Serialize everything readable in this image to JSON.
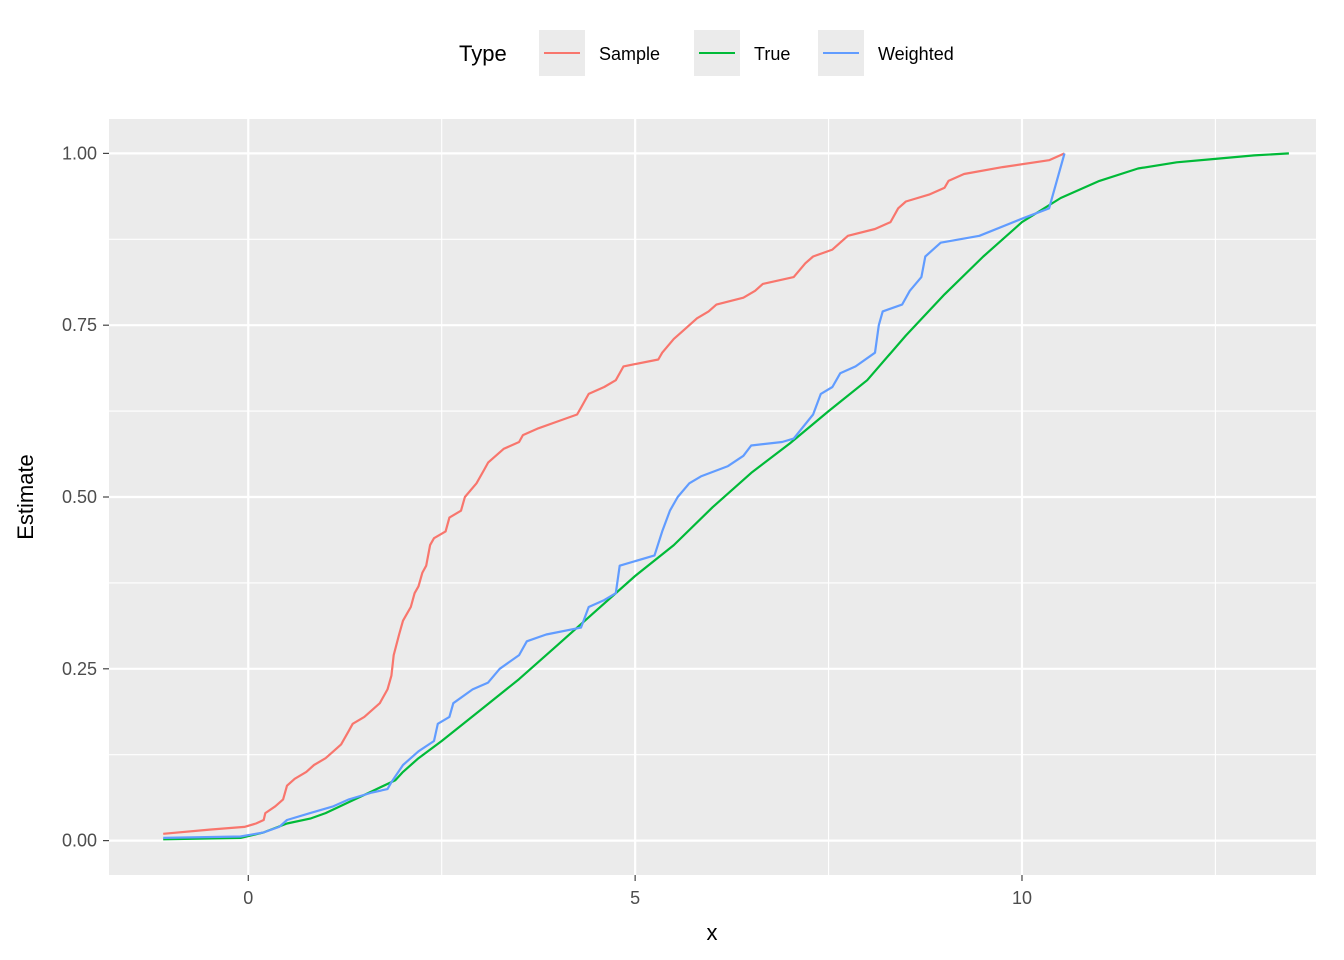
{
  "chart_data": {
    "type": "line",
    "title": "",
    "xlabel": "x",
    "ylabel": "Estimate",
    "xlim": [
      -1.8,
      13.8
    ],
    "ylim": [
      -0.05,
      1.05
    ],
    "x_ticks": [
      0,
      5,
      10
    ],
    "x_tick_labels": [
      "0",
      "5",
      "10"
    ],
    "y_ticks": [
      0,
      0.25,
      0.5,
      0.75,
      1.0
    ],
    "y_tick_labels": [
      "0.00",
      "0.25",
      "0.50",
      "0.75",
      "1.00"
    ],
    "grid": true,
    "legend": {
      "title": "Type",
      "position": "top",
      "entries": [
        "Sample",
        "True",
        "Weighted"
      ]
    },
    "series": [
      {
        "name": "Sample",
        "color": "#F8766D",
        "points": [
          [
            -1.1,
            0.01
          ],
          [
            -0.5,
            0.016
          ],
          [
            -0.05,
            0.02
          ],
          [
            0.1,
            0.025
          ],
          [
            0.2,
            0.03
          ],
          [
            0.22,
            0.04
          ],
          [
            0.35,
            0.05
          ],
          [
            0.45,
            0.06
          ],
          [
            0.5,
            0.08
          ],
          [
            0.6,
            0.09
          ],
          [
            0.75,
            0.1
          ],
          [
            0.85,
            0.11
          ],
          [
            1.0,
            0.12
          ],
          [
            1.1,
            0.13
          ],
          [
            1.2,
            0.14
          ],
          [
            1.3,
            0.16
          ],
          [
            1.35,
            0.17
          ],
          [
            1.5,
            0.18
          ],
          [
            1.7,
            0.2
          ],
          [
            1.8,
            0.22
          ],
          [
            1.85,
            0.24
          ],
          [
            1.88,
            0.27
          ],
          [
            1.95,
            0.3
          ],
          [
            2.0,
            0.32
          ],
          [
            2.05,
            0.33
          ],
          [
            2.1,
            0.34
          ],
          [
            2.15,
            0.36
          ],
          [
            2.2,
            0.37
          ],
          [
            2.25,
            0.39
          ],
          [
            2.3,
            0.4
          ],
          [
            2.35,
            0.43
          ],
          [
            2.4,
            0.44
          ],
          [
            2.55,
            0.45
          ],
          [
            2.6,
            0.47
          ],
          [
            2.75,
            0.48
          ],
          [
            2.8,
            0.5
          ],
          [
            2.95,
            0.52
          ],
          [
            3.05,
            0.54
          ],
          [
            3.1,
            0.55
          ],
          [
            3.3,
            0.57
          ],
          [
            3.5,
            0.58
          ],
          [
            3.55,
            0.59
          ],
          [
            3.75,
            0.6
          ],
          [
            4.0,
            0.61
          ],
          [
            4.25,
            0.62
          ],
          [
            4.3,
            0.63
          ],
          [
            4.4,
            0.65
          ],
          [
            4.6,
            0.66
          ],
          [
            4.75,
            0.67
          ],
          [
            4.85,
            0.69
          ],
          [
            5.3,
            0.7
          ],
          [
            5.35,
            0.71
          ],
          [
            5.5,
            0.73
          ],
          [
            5.6,
            0.74
          ],
          [
            5.8,
            0.76
          ],
          [
            5.95,
            0.77
          ],
          [
            6.05,
            0.78
          ],
          [
            6.4,
            0.79
          ],
          [
            6.55,
            0.8
          ],
          [
            6.65,
            0.81
          ],
          [
            7.05,
            0.82
          ],
          [
            7.2,
            0.84
          ],
          [
            7.3,
            0.85
          ],
          [
            7.55,
            0.86
          ],
          [
            7.75,
            0.88
          ],
          [
            8.1,
            0.89
          ],
          [
            8.3,
            0.9
          ],
          [
            8.4,
            0.92
          ],
          [
            8.5,
            0.93
          ],
          [
            8.8,
            0.94
          ],
          [
            9.0,
            0.95
          ],
          [
            9.05,
            0.96
          ],
          [
            9.25,
            0.97
          ],
          [
            9.75,
            0.98
          ],
          [
            10.35,
            0.99
          ],
          [
            10.55,
            1.0
          ]
        ]
      },
      {
        "name": "True",
        "color": "#00BA38",
        "points": [
          [
            -1.1,
            0.002
          ],
          [
            -0.1,
            0.004
          ],
          [
            0.2,
            0.012
          ],
          [
            0.5,
            0.025
          ],
          [
            0.8,
            0.032
          ],
          [
            1.0,
            0.04
          ],
          [
            1.3,
            0.056
          ],
          [
            1.6,
            0.072
          ],
          [
            1.9,
            0.088
          ],
          [
            2.0,
            0.1
          ],
          [
            2.2,
            0.12
          ],
          [
            2.5,
            0.145
          ],
          [
            3.0,
            0.19
          ],
          [
            3.5,
            0.235
          ],
          [
            4.0,
            0.285
          ],
          [
            4.5,
            0.335
          ],
          [
            5.0,
            0.385
          ],
          [
            5.5,
            0.43
          ],
          [
            6.0,
            0.485
          ],
          [
            6.5,
            0.535
          ],
          [
            7.0,
            0.578
          ],
          [
            7.5,
            0.625
          ],
          [
            8.0,
            0.67
          ],
          [
            8.5,
            0.735
          ],
          [
            9.0,
            0.795
          ],
          [
            9.5,
            0.85
          ],
          [
            10.0,
            0.9
          ],
          [
            10.5,
            0.935
          ],
          [
            11.0,
            0.96
          ],
          [
            11.5,
            0.978
          ],
          [
            12.0,
            0.987
          ],
          [
            12.5,
            0.992
          ],
          [
            13.0,
            0.997
          ],
          [
            13.45,
            1.0
          ]
        ]
      },
      {
        "name": "Weighted",
        "color": "#619CFF",
        "points": [
          [
            -1.1,
            0.004
          ],
          [
            -0.1,
            0.006
          ],
          [
            0.2,
            0.012
          ],
          [
            0.4,
            0.02
          ],
          [
            0.5,
            0.03
          ],
          [
            0.8,
            0.04
          ],
          [
            1.1,
            0.05
          ],
          [
            1.3,
            0.06
          ],
          [
            1.6,
            0.07
          ],
          [
            1.8,
            0.075
          ],
          [
            1.85,
            0.085
          ],
          [
            2.0,
            0.11
          ],
          [
            2.2,
            0.13
          ],
          [
            2.4,
            0.145
          ],
          [
            2.45,
            0.17
          ],
          [
            2.6,
            0.18
          ],
          [
            2.65,
            0.2
          ],
          [
            2.9,
            0.22
          ],
          [
            3.1,
            0.23
          ],
          [
            3.25,
            0.25
          ],
          [
            3.5,
            0.27
          ],
          [
            3.6,
            0.29
          ],
          [
            3.85,
            0.3
          ],
          [
            4.3,
            0.31
          ],
          [
            4.4,
            0.34
          ],
          [
            4.6,
            0.35
          ],
          [
            4.75,
            0.36
          ],
          [
            4.8,
            0.4
          ],
          [
            5.25,
            0.415
          ],
          [
            5.35,
            0.45
          ],
          [
            5.45,
            0.48
          ],
          [
            5.55,
            0.5
          ],
          [
            5.7,
            0.52
          ],
          [
            5.85,
            0.53
          ],
          [
            6.2,
            0.545
          ],
          [
            6.4,
            0.56
          ],
          [
            6.5,
            0.575
          ],
          [
            6.9,
            0.58
          ],
          [
            7.05,
            0.585
          ],
          [
            7.3,
            0.62
          ],
          [
            7.4,
            0.65
          ],
          [
            7.55,
            0.66
          ],
          [
            7.65,
            0.68
          ],
          [
            7.85,
            0.69
          ],
          [
            8.1,
            0.71
          ],
          [
            8.15,
            0.75
          ],
          [
            8.2,
            0.77
          ],
          [
            8.45,
            0.78
          ],
          [
            8.55,
            0.8
          ],
          [
            8.7,
            0.82
          ],
          [
            8.75,
            0.85
          ],
          [
            8.95,
            0.87
          ],
          [
            9.45,
            0.88
          ],
          [
            10.0,
            0.905
          ],
          [
            10.35,
            0.92
          ],
          [
            10.55,
            1.0
          ]
        ]
      }
    ]
  }
}
